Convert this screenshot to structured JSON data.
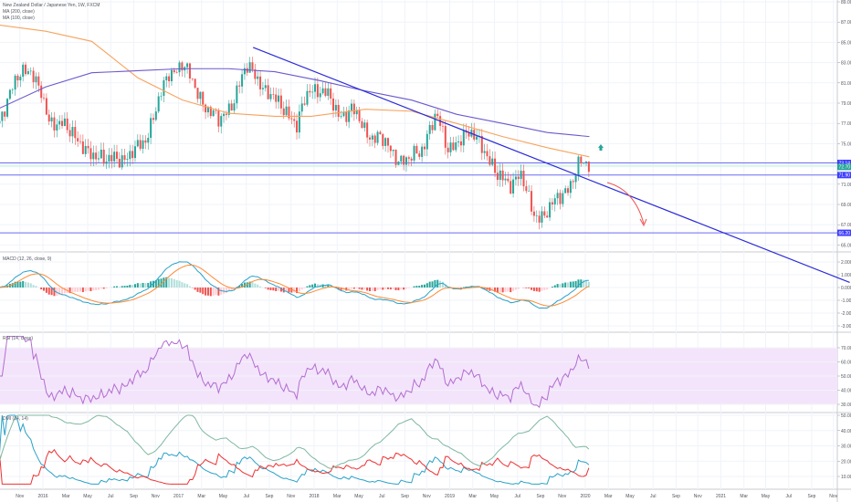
{
  "legend": {
    "symbol": "New Zealand Dollar / Japanese Yen, 1W, FXCM",
    "ma1": "MA (200, close)",
    "ma2": "MA (100, close)",
    "macd": "MACD (12, 26, close, 9)",
    "rsi": "RSI (14, close)",
    "dmi": "DMI (14, 14)"
  },
  "colors": {
    "up": "#26a69a",
    "down": "#ef5350",
    "trend": "#2b2bd8",
    "ma_orange": "#f7a35c",
    "ma_purple": "#6a5acd",
    "rsi": "#b36dd0",
    "rsi_band": "#f3e4fb",
    "macd": "#2aa2c8",
    "signal": "#ff8a33",
    "accent_tag": "#3d3dff"
  },
  "chart_data": {
    "type": "candlestick",
    "xlim": [
      2015.68,
      2021.92
    ],
    "close_points": [
      [
        2015.68,
        77
      ],
      [
        2015.75,
        80.2
      ],
      [
        2015.82,
        81.5
      ],
      [
        2015.92,
        82.4
      ],
      [
        2015.99,
        80
      ],
      [
        2016.05,
        76.5
      ],
      [
        2016.15,
        77.5
      ],
      [
        2016.26,
        74.8
      ],
      [
        2016.36,
        74.3
      ],
      [
        2016.46,
        73
      ],
      [
        2016.53,
        73.9
      ],
      [
        2016.63,
        73.4
      ],
      [
        2016.76,
        75.7
      ],
      [
        2016.86,
        79.3
      ],
      [
        2016.93,
        82
      ],
      [
        2017.03,
        82.9
      ],
      [
        2017.1,
        81
      ],
      [
        2017.2,
        78.8
      ],
      [
        2017.3,
        77
      ],
      [
        2017.4,
        79.3
      ],
      [
        2017.5,
        82.4
      ],
      [
        2017.57,
        82
      ],
      [
        2017.64,
        80.2
      ],
      [
        2017.7,
        79.3
      ],
      [
        2017.8,
        78.4
      ],
      [
        2017.87,
        76.6
      ],
      [
        2017.97,
        80.6
      ],
      [
        2018.07,
        80.2
      ],
      [
        2018.18,
        77.9
      ],
      [
        2018.28,
        78.4
      ],
      [
        2018.38,
        76.1
      ],
      [
        2018.48,
        75.7
      ],
      [
        2018.58,
        73.9
      ],
      [
        2018.68,
        73.4
      ],
      [
        2018.78,
        73.9
      ],
      [
        2018.85,
        76.6
      ],
      [
        2018.9,
        78
      ],
      [
        2018.98,
        74.3
      ],
      [
        2019.08,
        75.7
      ],
      [
        2019.19,
        75.7
      ],
      [
        2019.25,
        74.8
      ],
      [
        2019.35,
        71.6
      ],
      [
        2019.45,
        71.2
      ],
      [
        2019.52,
        72.1
      ],
      [
        2019.58,
        69.4
      ],
      [
        2019.62,
        68
      ],
      [
        2019.69,
        68
      ],
      [
        2019.76,
        68.9
      ],
      [
        2019.82,
        69.8
      ],
      [
        2019.89,
        71.2
      ],
      [
        2019.96,
        73
      ],
      [
        2020.03,
        72.7
      ]
    ],
    "ma200": [
      [
        2015.68,
        86.7
      ],
      [
        2016.02,
        86.1
      ],
      [
        2016.36,
        85.1
      ],
      [
        2016.7,
        81.5
      ],
      [
        2017.03,
        79.3
      ],
      [
        2017.37,
        78
      ],
      [
        2017.71,
        77.7
      ],
      [
        2017.98,
        77.7
      ],
      [
        2018.38,
        78.4
      ],
      [
        2018.72,
        78.2
      ],
      [
        2019.05,
        77
      ],
      [
        2019.39,
        75.7
      ],
      [
        2019.72,
        74.6
      ],
      [
        2020.03,
        73.7
      ]
    ],
    "ma100": [
      [
        2015.68,
        78.5
      ],
      [
        2016.02,
        80.6
      ],
      [
        2016.36,
        82
      ],
      [
        2016.7,
        82.2
      ],
      [
        2017.03,
        82.4
      ],
      [
        2017.37,
        82.4
      ],
      [
        2017.71,
        82.1
      ],
      [
        2018.05,
        81.2
      ],
      [
        2018.38,
        80.2
      ],
      [
        2018.72,
        79.3
      ],
      [
        2019.05,
        77.9
      ],
      [
        2019.39,
        77
      ],
      [
        2019.72,
        76.1
      ],
      [
        2020.03,
        75.7
      ]
    ],
    "trendline": [
      [
        2017.55,
        84.5
      ],
      [
        2021.95,
        61.3
      ]
    ],
    "horizontal_levels": [
      73.1,
      71.9,
      66.2
    ],
    "price_axis": {
      "ylim": [
        64.4,
        89.2
      ],
      "ticks": [
        "89.000",
        "87.000",
        "85.000",
        "83.000",
        "81.000",
        "79.000",
        "77.000",
        "75.000",
        "71.000",
        "69.000",
        "67.000",
        "65.000"
      ],
      "tick_values": [
        89,
        87,
        85,
        83,
        81,
        79,
        77,
        75,
        71,
        69,
        67,
        65
      ]
    },
    "price_tags": [
      {
        "label": "73.14",
        "value": 73.1,
        "kind": "level"
      },
      {
        "label": "72.70",
        "value": 72.7,
        "kind": "last"
      },
      {
        "label": "71.90",
        "value": 71.9,
        "kind": "level"
      },
      {
        "label": "66.20",
        "value": 66.2,
        "kind": "level"
      }
    ],
    "macd_axis": {
      "ticks": [
        "2.000",
        "1.000",
        "0.000",
        "-1.000",
        "-2.000",
        "-3.000"
      ],
      "tick_values": [
        2,
        1,
        0,
        -1,
        -2,
        -3
      ]
    },
    "rsi_axis": {
      "ticks": [
        "70.00",
        "60.00",
        "50.00",
        "40.00",
        "30.00"
      ],
      "tick_values": [
        70,
        60,
        50,
        40,
        30
      ],
      "band": [
        30,
        70
      ]
    },
    "dmi_axis": {
      "ticks": [
        "50.000",
        "40.000",
        "30.000",
        "20.000",
        "10.000"
      ],
      "tick_values": [
        50,
        40,
        30,
        20,
        10
      ]
    },
    "time_axis": [
      [
        "Nov",
        2015.83
      ],
      [
        "2016",
        2016
      ],
      [
        "Mar",
        2016.17
      ],
      [
        "May",
        2016.33
      ],
      [
        "Jul",
        2016.5
      ],
      [
        "Sep",
        2016.67
      ],
      [
        "Nov",
        2016.83
      ],
      [
        "2017",
        2017
      ],
      [
        "Mar",
        2017.17
      ],
      [
        "May",
        2017.33
      ],
      [
        "Jul",
        2017.5
      ],
      [
        "Sep",
        2017.67
      ],
      [
        "Nov",
        2017.83
      ],
      [
        "2018",
        2018
      ],
      [
        "Mar",
        2018.17
      ],
      [
        "May",
        2018.33
      ],
      [
        "Jul",
        2018.5
      ],
      [
        "Sep",
        2018.67
      ],
      [
        "Nov",
        2018.83
      ],
      [
        "2019",
        2019
      ],
      [
        "Mar",
        2019.17
      ],
      [
        "May",
        2019.33
      ],
      [
        "Jul",
        2019.5
      ],
      [
        "Sep",
        2019.67
      ],
      [
        "Nov",
        2019.83
      ],
      [
        "2020",
        2020
      ],
      [
        "Mar",
        2020.17
      ],
      [
        "May",
        2020.33
      ],
      [
        "Jul",
        2020.5
      ],
      [
        "Sep",
        2020.67
      ],
      [
        "Nov",
        2020.83
      ],
      [
        "2021",
        2021
      ],
      [
        "Mar",
        2021.17
      ],
      [
        "May",
        2021.33
      ],
      [
        "Jul",
        2021.5
      ],
      [
        "Sep",
        2021.67
      ],
      [
        "Nov",
        2021.83
      ]
    ]
  }
}
